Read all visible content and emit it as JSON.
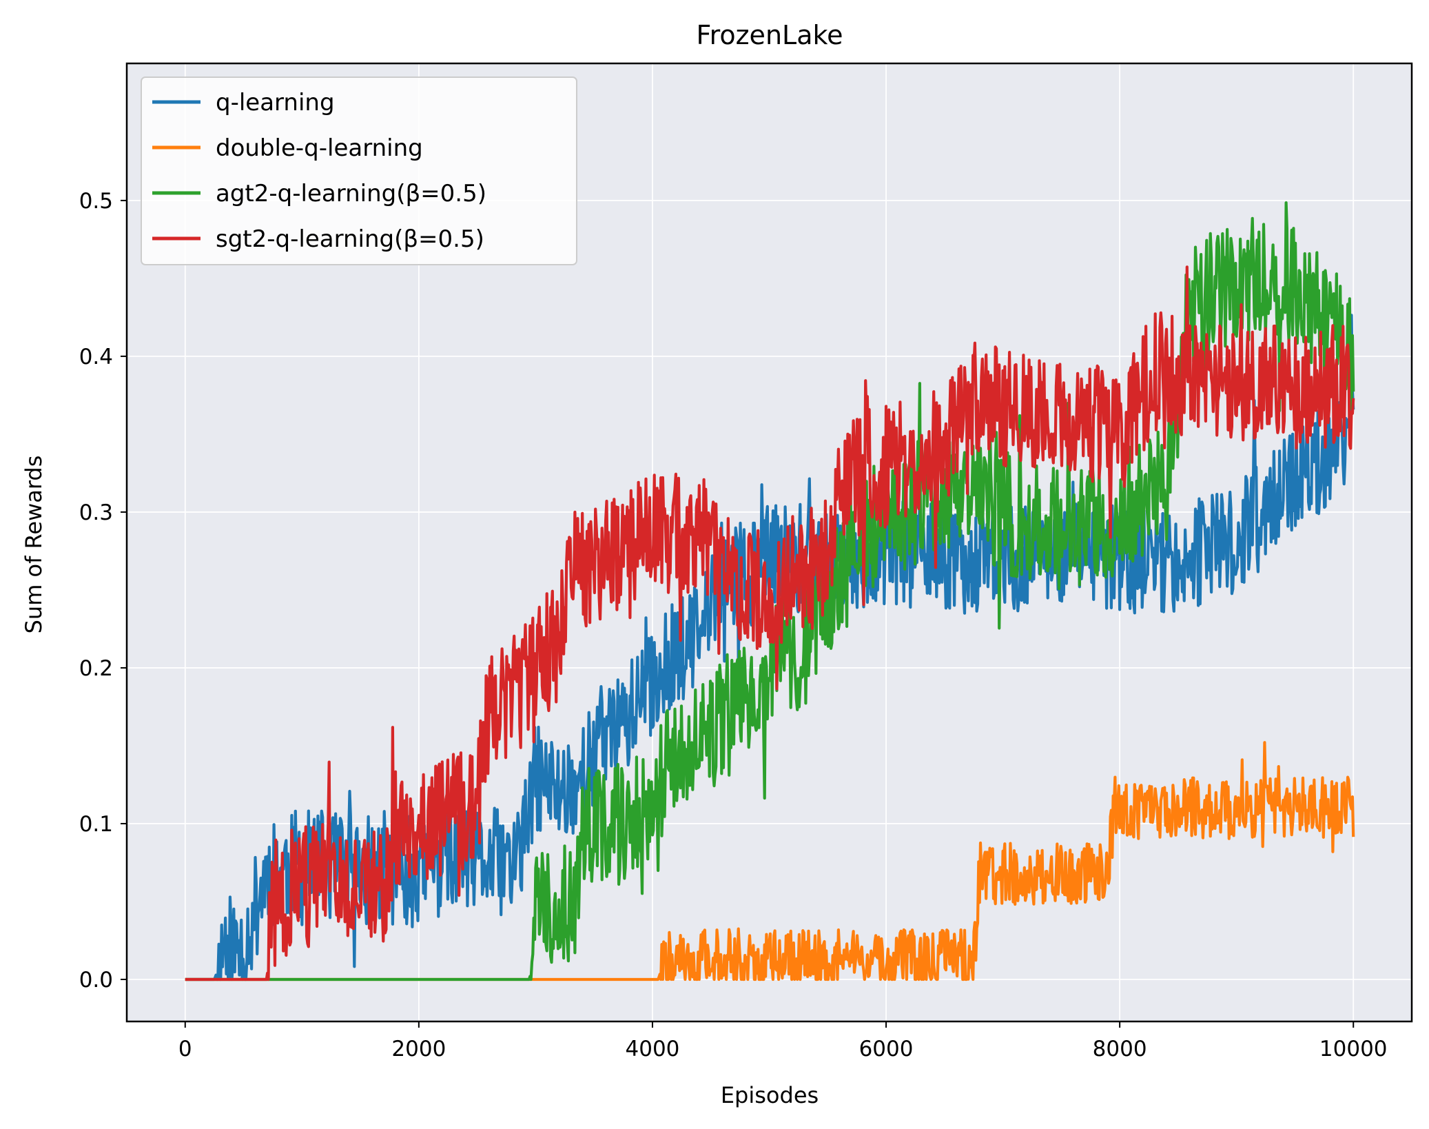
{
  "chart_data": {
    "type": "line",
    "title": "FrozenLake",
    "xlabel": "Episodes",
    "ylabel": "Sum of Rewards",
    "xlim": [
      -500,
      10500
    ],
    "ylim": [
      -0.027,
      0.588
    ],
    "xticks": [
      0,
      2000,
      4000,
      6000,
      8000,
      10000
    ],
    "yticks": [
      0.0,
      0.1,
      0.2,
      0.3,
      0.4,
      0.5
    ],
    "xtick_labels": [
      "0",
      "2000",
      "4000",
      "6000",
      "8000",
      "10000"
    ],
    "ytick_labels": [
      "0.0",
      "0.1",
      "0.2",
      "0.3",
      "0.4",
      "0.5"
    ],
    "grid": true,
    "legend_position": "top-left",
    "background": "#e8eaf0",
    "series": [
      {
        "name": "q-learning",
        "color": "#1f77b4",
        "x": [
          0,
          250,
          300,
          350,
          400,
          500,
          700,
          800,
          1000,
          1500,
          2000,
          2200,
          2500,
          2800,
          2900,
          3000,
          3200,
          3400,
          3600,
          3800,
          4000,
          4200,
          4400,
          4600,
          4800,
          5000,
          5500,
          6000,
          6500,
          7000,
          7500,
          8000,
          8500,
          9000,
          9200,
          9500,
          9700,
          10000
        ],
        "values": [
          0.0,
          0.0,
          0.01,
          0.03,
          0.02,
          0.02,
          0.07,
          0.07,
          0.075,
          0.07,
          0.07,
          0.08,
          0.075,
          0.075,
          0.09,
          0.13,
          0.12,
          0.13,
          0.16,
          0.17,
          0.19,
          0.21,
          0.22,
          0.26,
          0.26,
          0.27,
          0.27,
          0.275,
          0.27,
          0.27,
          0.275,
          0.27,
          0.27,
          0.28,
          0.3,
          0.32,
          0.33,
          0.36
        ],
        "noise": 0.035,
        "seed": 11
      },
      {
        "name": "double-q-learning",
        "color": "#ff7f0e",
        "x": [
          0,
          4050,
          4100,
          6750,
          6800,
          7900,
          7950,
          10000
        ],
        "values": [
          0.0,
          0.0,
          0.012,
          0.012,
          0.068,
          0.068,
          0.11,
          0.11
        ],
        "noise": 0.02,
        "seed": 22
      },
      {
        "name": "agt2-q-learning(β=0.5)",
        "color": "#2ca02c",
        "x": [
          0,
          2950,
          3000,
          3350,
          3400,
          3800,
          4200,
          4500,
          4800,
          5000,
          5300,
          5600,
          6000,
          6500,
          7000,
          7500,
          8000,
          8400,
          8600,
          9000,
          9400,
          9800,
          10000
        ],
        "values": [
          0.0,
          0.0,
          0.05,
          0.05,
          0.1,
          0.1,
          0.14,
          0.16,
          0.18,
          0.2,
          0.21,
          0.26,
          0.3,
          0.31,
          0.3,
          0.29,
          0.3,
          0.32,
          0.43,
          0.45,
          0.45,
          0.42,
          0.4
        ],
        "noise": 0.04,
        "seed": 33
      },
      {
        "name": "sgt2-q-learning(β=0.5)",
        "color": "#d62728",
        "x": [
          0,
          700,
          750,
          1000,
          1700,
          1800,
          2500,
          2600,
          2900,
          3200,
          3300,
          3600,
          4000,
          4500,
          4700,
          5000,
          5500,
          5600,
          6000,
          6500,
          6700,
          7000,
          8000,
          8300,
          9000,
          9500,
          10000
        ],
        "values": [
          0.0,
          0.0,
          0.05,
          0.06,
          0.06,
          0.1,
          0.11,
          0.17,
          0.19,
          0.22,
          0.26,
          0.27,
          0.29,
          0.28,
          0.25,
          0.25,
          0.27,
          0.32,
          0.33,
          0.34,
          0.37,
          0.37,
          0.35,
          0.39,
          0.38,
          0.38,
          0.38
        ],
        "noise": 0.04,
        "seed": 44
      }
    ]
  }
}
